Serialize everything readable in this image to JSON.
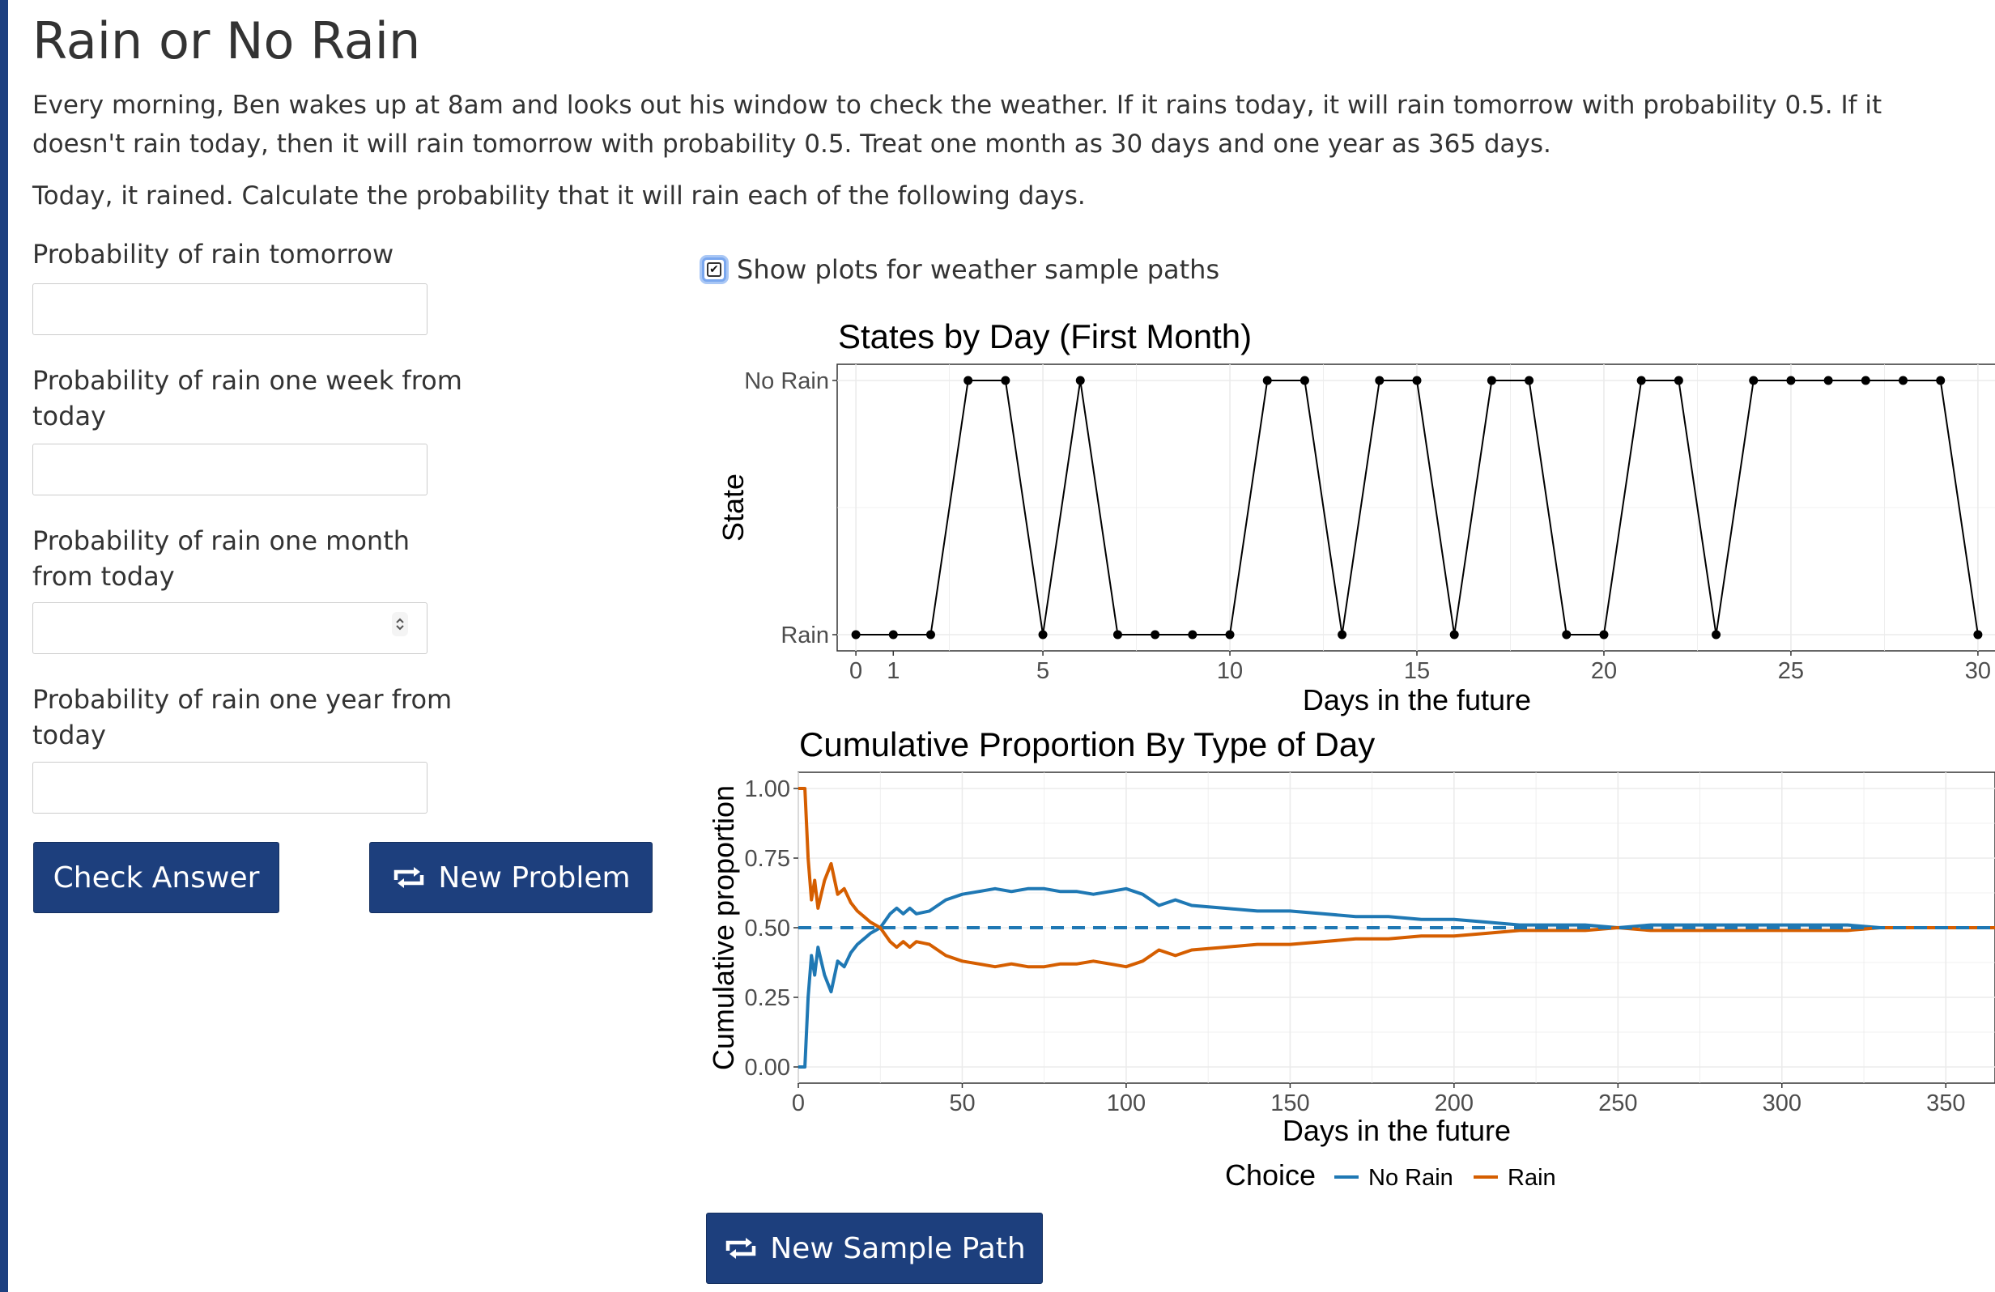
{
  "page": {
    "title": "Rain or No Rain",
    "intro": "Every morning, Ben wakes up at 8am and looks out his window to check the weather. If it rains today, it will rain tomorrow with probability 0.5. If it doesn't rain today, then it will rain tomorrow with probability 0.5. Treat one month as 30 days and one year as 365 days.",
    "question": "Today, it rained. Calculate the probability that it will rain each of the following days."
  },
  "form": {
    "tomorrow_label": "Probability of rain tomorrow",
    "tomorrow_value": "",
    "week_label": "Probability of rain one week from today",
    "week_value": "",
    "month_label": "Probability of rain one month from today",
    "month_value": "",
    "year_label": "Probability of rain one year from today",
    "year_value": "",
    "check_answer_label": "Check Answer",
    "new_problem_label": "New Problem",
    "new_problem_icon": "repeat-icon"
  },
  "plots_toggle": {
    "label": "Show plots for weather sample paths",
    "checked": true
  },
  "new_sample_path_label": "New Sample Path",
  "colors": {
    "button": "#1d3f7d",
    "accent_bar": "#1d4080",
    "no_rain": "#1f78b4",
    "rain": "#d55e00"
  },
  "chart_data": [
    {
      "type": "line",
      "title": "States by Day (First Month)",
      "xlabel": "Days in the future",
      "ylabel": "State",
      "xlim": [
        0,
        30
      ],
      "x_ticks": [
        0,
        1,
        5,
        10,
        15,
        20,
        25,
        30
      ],
      "y_categories": [
        "Rain",
        "No Rain"
      ],
      "grid": true,
      "markers": true,
      "x": [
        0,
        1,
        2,
        3,
        4,
        5,
        6,
        7,
        8,
        9,
        10,
        11,
        12,
        13,
        14,
        15,
        16,
        17,
        18,
        19,
        20,
        21,
        22,
        23,
        24,
        25,
        26,
        27,
        28,
        29,
        30
      ],
      "states": [
        "Rain",
        "Rain",
        "Rain",
        "No Rain",
        "No Rain",
        "Rain",
        "No Rain",
        "Rain",
        "Rain",
        "Rain",
        "Rain",
        "No Rain",
        "No Rain",
        "Rain",
        "No Rain",
        "No Rain",
        "Rain",
        "No Rain",
        "No Rain",
        "Rain",
        "Rain",
        "No Rain",
        "No Rain",
        "Rain",
        "No Rain",
        "No Rain",
        "No Rain",
        "No Rain",
        "No Rain",
        "No Rain",
        "Rain"
      ]
    },
    {
      "type": "line",
      "title": "Cumulative Proportion By Type of Day",
      "xlabel": "Days in the future",
      "ylabel": "Cumulative proportion",
      "xlim": [
        0,
        365
      ],
      "ylim": [
        0,
        1
      ],
      "x_ticks": [
        0,
        50,
        100,
        150,
        200,
        250,
        300,
        350
      ],
      "y_ticks": [
        "0.00",
        "0.25",
        "0.50",
        "0.75",
        "1.00"
      ],
      "grid": true,
      "reference_line": {
        "y": 0.5,
        "style": "dashed"
      },
      "legend": {
        "title": "Choice",
        "position": "bottom"
      },
      "series": [
        {
          "name": "No Rain",
          "x": [
            0,
            2,
            3,
            4,
            5,
            6,
            7,
            8,
            10,
            12,
            14,
            16,
            18,
            20,
            22,
            25,
            28,
            30,
            32,
            34,
            36,
            40,
            45,
            50,
            55,
            60,
            65,
            70,
            75,
            80,
            85,
            90,
            95,
            100,
            105,
            110,
            115,
            120,
            130,
            140,
            150,
            160,
            170,
            180,
            190,
            200,
            210,
            220,
            230,
            240,
            250,
            260,
            270,
            280,
            290,
            300,
            310,
            320,
            330,
            340,
            350,
            360,
            365
          ],
          "values": [
            0,
            0,
            0.25,
            0.4,
            0.33,
            0.43,
            0.38,
            0.33,
            0.27,
            0.38,
            0.36,
            0.41,
            0.44,
            0.46,
            0.48,
            0.5,
            0.55,
            0.57,
            0.55,
            0.57,
            0.55,
            0.56,
            0.6,
            0.62,
            0.63,
            0.64,
            0.63,
            0.64,
            0.64,
            0.63,
            0.63,
            0.62,
            0.63,
            0.64,
            0.62,
            0.58,
            0.6,
            0.58,
            0.57,
            0.56,
            0.56,
            0.55,
            0.54,
            0.54,
            0.53,
            0.53,
            0.52,
            0.51,
            0.51,
            0.51,
            0.5,
            0.51,
            0.51,
            0.51,
            0.51,
            0.51,
            0.51,
            0.51,
            0.5,
            0.5,
            0.5,
            0.5,
            0.5
          ]
        },
        {
          "name": "Rain",
          "x": [
            0,
            2,
            3,
            4,
            5,
            6,
            7,
            8,
            10,
            12,
            14,
            16,
            18,
            20,
            22,
            25,
            28,
            30,
            32,
            34,
            36,
            40,
            45,
            50,
            55,
            60,
            65,
            70,
            75,
            80,
            85,
            90,
            95,
            100,
            105,
            110,
            115,
            120,
            130,
            140,
            150,
            160,
            170,
            180,
            190,
            200,
            210,
            220,
            230,
            240,
            250,
            260,
            270,
            280,
            290,
            300,
            310,
            320,
            330,
            340,
            350,
            360,
            365
          ],
          "values": [
            1,
            1,
            0.75,
            0.6,
            0.67,
            0.57,
            0.62,
            0.67,
            0.73,
            0.62,
            0.64,
            0.59,
            0.56,
            0.54,
            0.52,
            0.5,
            0.45,
            0.43,
            0.45,
            0.43,
            0.45,
            0.44,
            0.4,
            0.38,
            0.37,
            0.36,
            0.37,
            0.36,
            0.36,
            0.37,
            0.37,
            0.38,
            0.37,
            0.36,
            0.38,
            0.42,
            0.4,
            0.42,
            0.43,
            0.44,
            0.44,
            0.45,
            0.46,
            0.46,
            0.47,
            0.47,
            0.48,
            0.49,
            0.49,
            0.49,
            0.5,
            0.49,
            0.49,
            0.49,
            0.49,
            0.49,
            0.49,
            0.49,
            0.5,
            0.5,
            0.5,
            0.5,
            0.5
          ]
        }
      ]
    }
  ]
}
